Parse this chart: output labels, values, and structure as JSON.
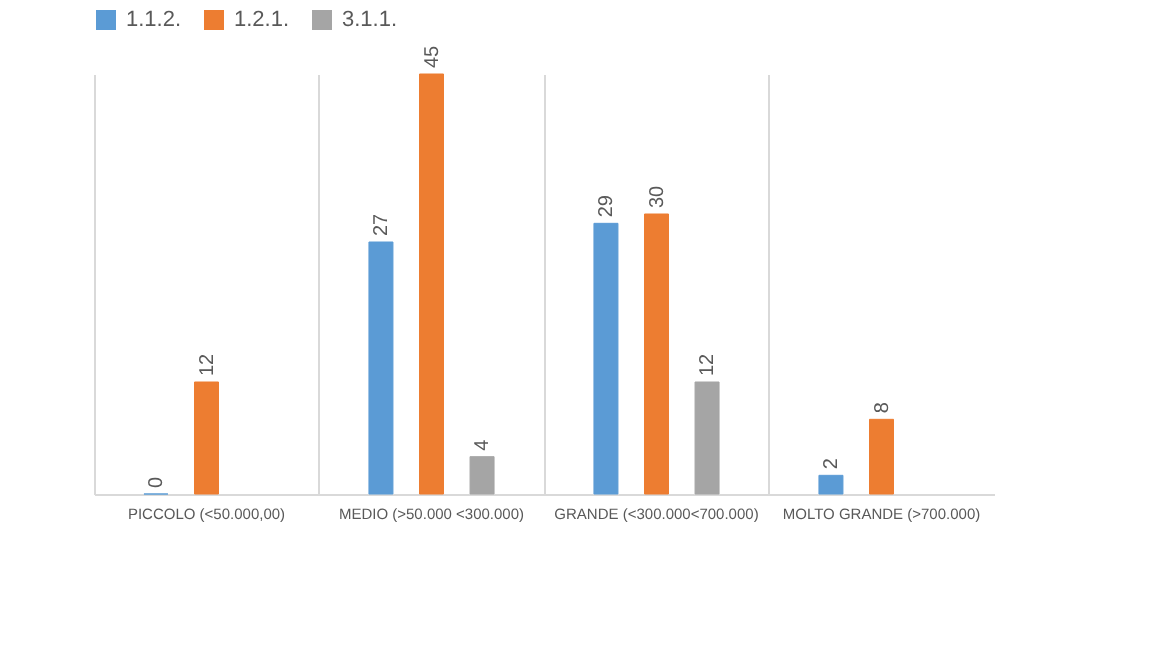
{
  "chart_data": {
    "type": "bar",
    "categories": [
      "PICCOLO (<50.000,00)",
      "MEDIO (>50.000 <300.000)",
      "GRANDE (<300.000<700.000)",
      "MOLTO GRANDE (>700.000)"
    ],
    "series": [
      {
        "name": "1.1.2.",
        "color": "#5b9bd5",
        "values": [
          0,
          27,
          29,
          2
        ]
      },
      {
        "name": "1.2.1.",
        "color": "#ed7d31",
        "values": [
          12,
          45,
          30,
          8
        ]
      },
      {
        "name": "3.1.1.",
        "color": "#a5a5a5",
        "values": [
          null,
          4,
          12,
          null
        ]
      }
    ],
    "data_labels": true,
    "legend": "top",
    "grid": "x"
  }
}
